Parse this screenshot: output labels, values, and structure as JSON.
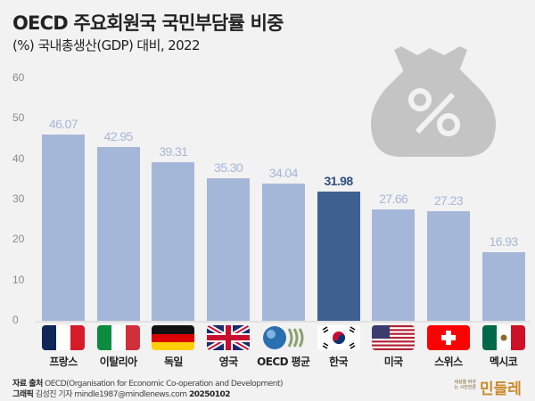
{
  "header": {
    "title": "OECD 주요회원국 국민부담률 비중",
    "subtitle": "(%) 국내총생산(GDP) 대비, 2022"
  },
  "decoration": {
    "icon": "money-bag-percent-icon",
    "color": "#c4c4c4"
  },
  "colors": {
    "background": "#f2f2f2",
    "bar": "#a5b7d8",
    "bar_highlight": "#3d6091",
    "value_label": "#a5b7d8",
    "value_label_highlight": "#2e4f7f"
  },
  "chart_data": {
    "type": "bar",
    "title": "OECD 주요회원국 국민부담률 비중",
    "subtitle": "(%) 국내총생산(GDP) 대비, 2022",
    "xlabel": "",
    "ylabel": "%",
    "ylim": [
      0,
      60
    ],
    "yticks": [
      0,
      10,
      20,
      30,
      40,
      50,
      60
    ],
    "grid": false,
    "legend": null,
    "categories": [
      "프랑스",
      "이탈리아",
      "독일",
      "영국",
      "OECD 평균",
      "한국",
      "미국",
      "스위스",
      "멕시코"
    ],
    "values": [
      46.07,
      42.95,
      39.31,
      35.3,
      34.04,
      31.98,
      27.66,
      27.23,
      16.93
    ],
    "value_labels": [
      "46.07",
      "42.95",
      "39.31",
      "35.30",
      "34.04",
      "31.98",
      "27.66",
      "27.23",
      "16.93"
    ],
    "highlight": "한국",
    "flags": [
      "france-flag-icon",
      "italy-flag-icon",
      "germany-flag-icon",
      "uk-flag-icon",
      "oecd-logo-icon",
      "korea-flag-icon",
      "usa-flag-icon",
      "switzerland-flag-icon",
      "mexico-flag-icon"
    ]
  },
  "footer": {
    "source_label": "자료 출처",
    "source_text": "OECD(Organisation for Economic Co-operation and Development)",
    "graphic_label": "그래픽",
    "graphic_text": "김성진 기자 mindle1987@mindlenews.com",
    "date": "20250102",
    "logo_tagline": "세상을 바꾸는 시민언론",
    "logo_text": "민들레"
  }
}
